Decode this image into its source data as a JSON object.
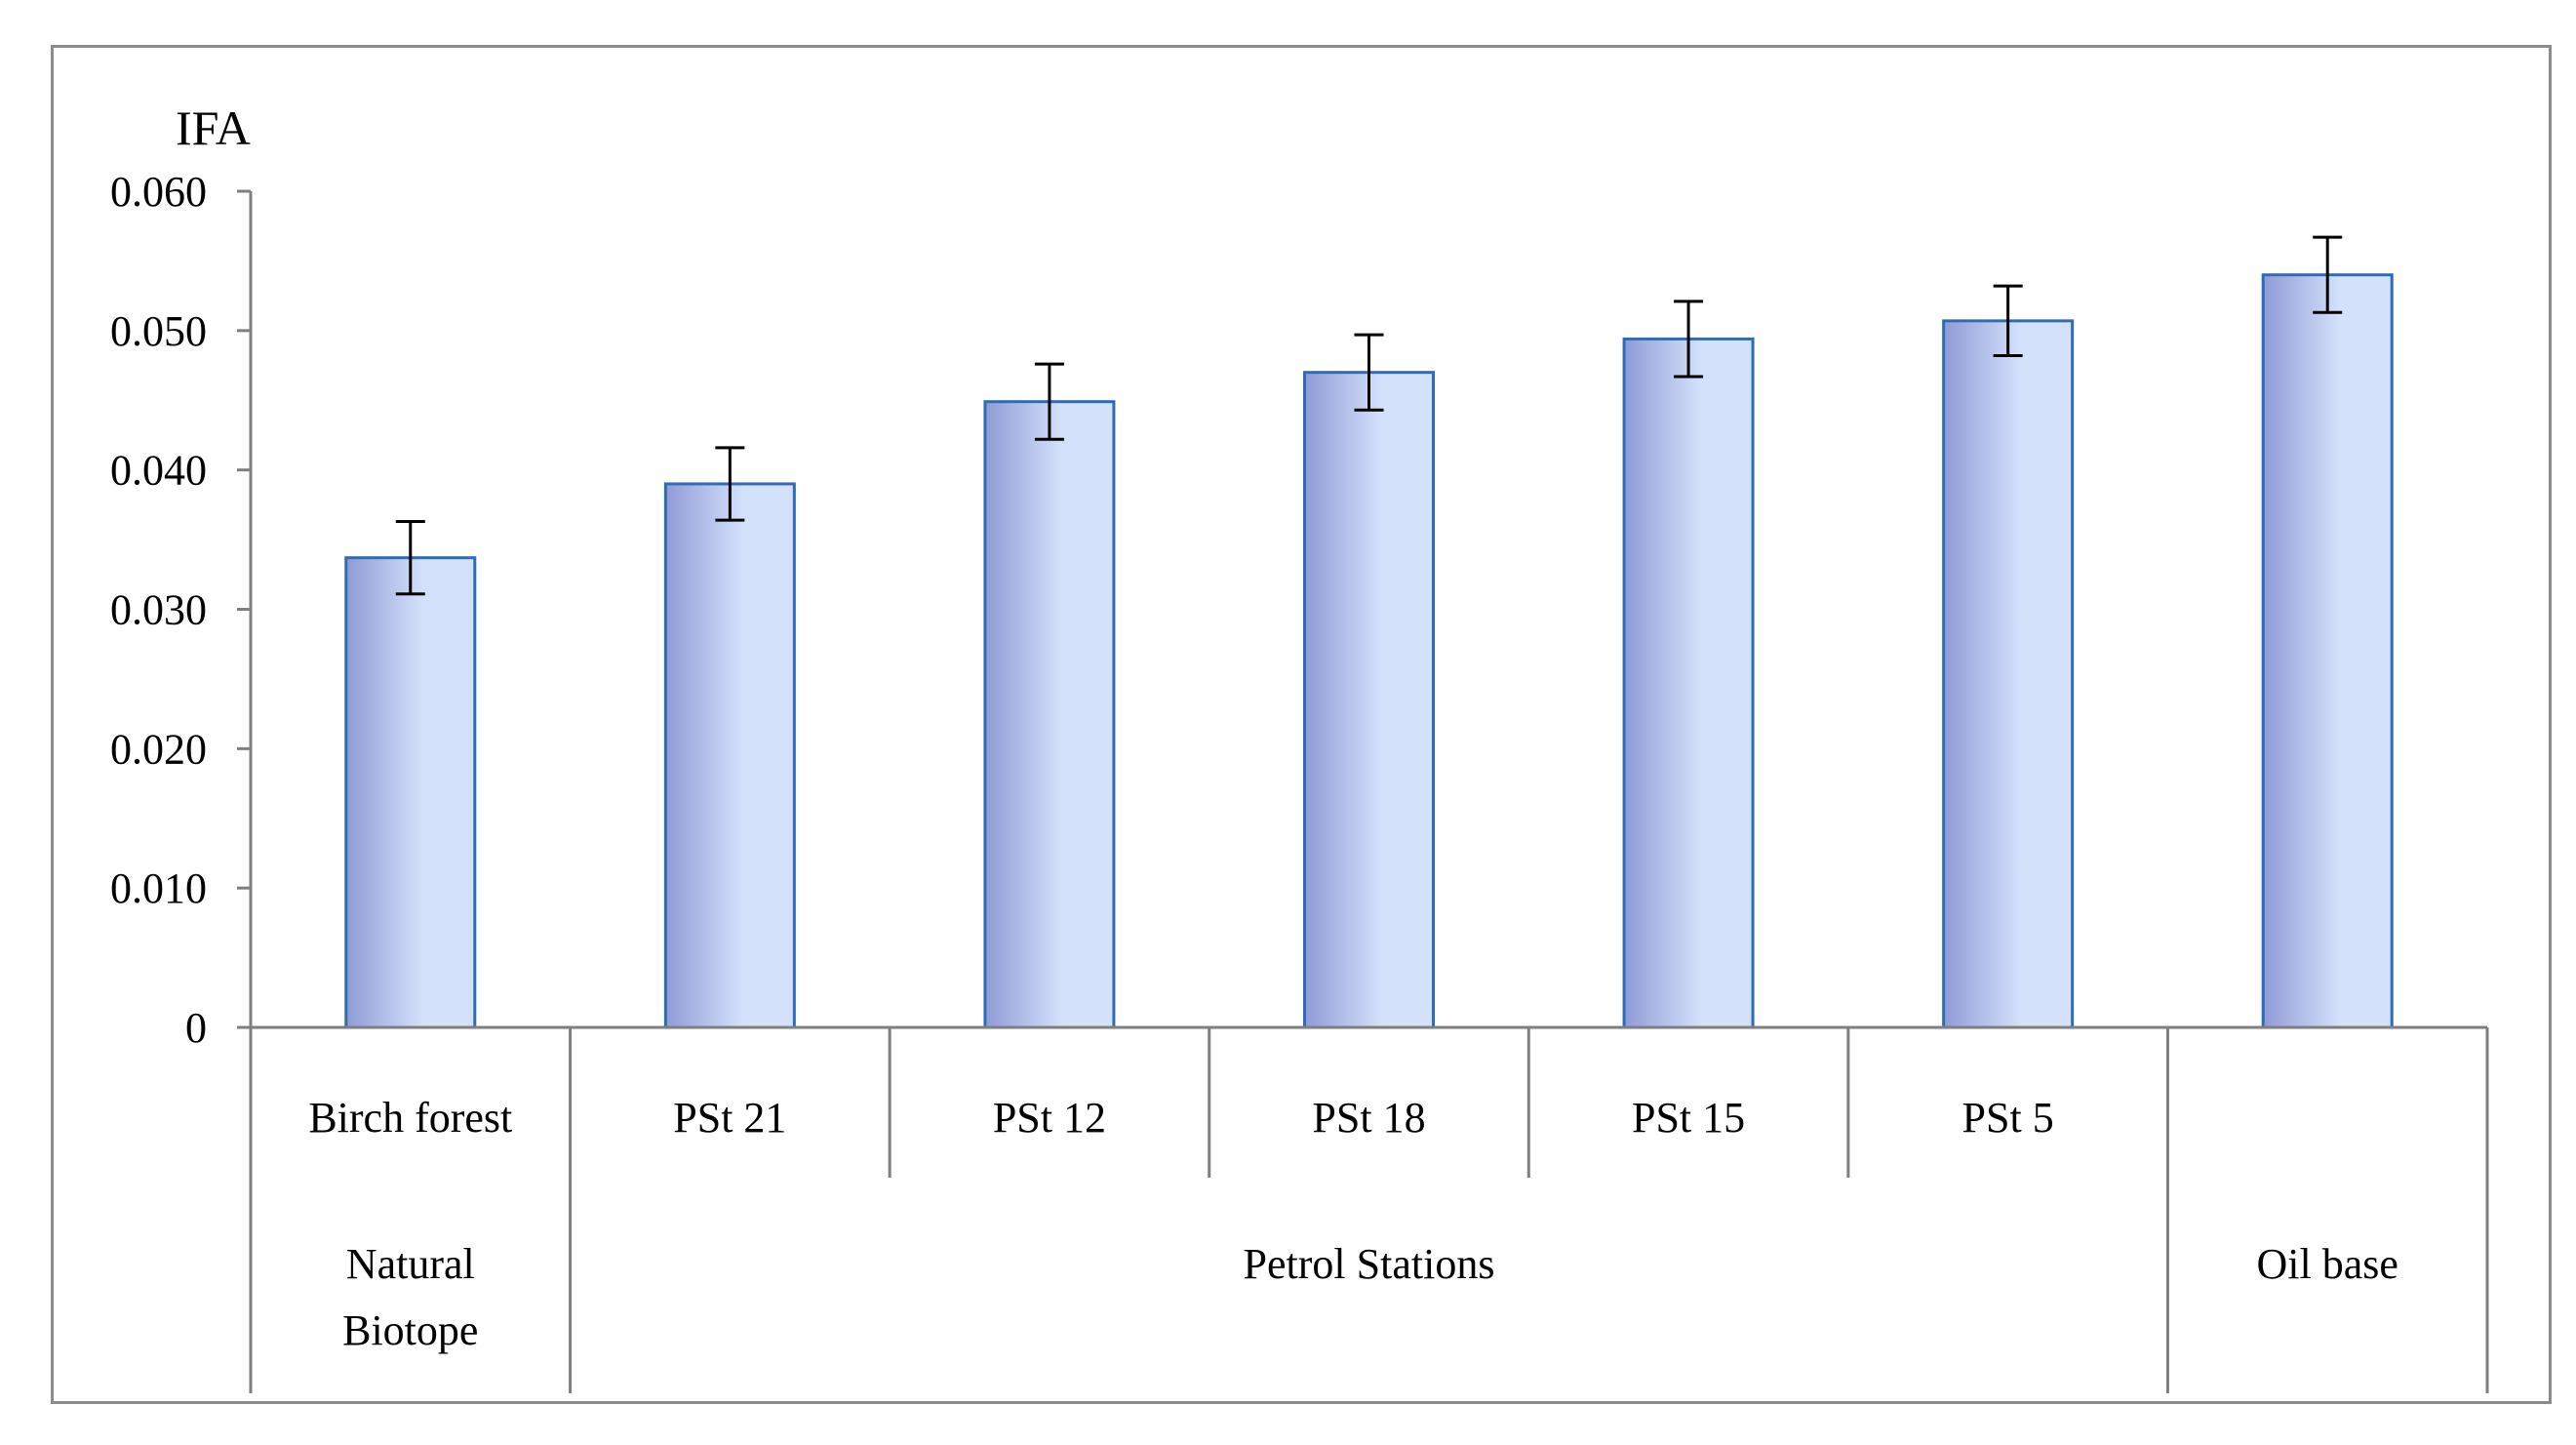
{
  "chart_data": {
    "type": "bar",
    "ylabel": "IFA",
    "ylim": [
      0,
      0.06
    ],
    "yticks": [
      "0",
      "0.010",
      "0.020",
      "0.030",
      "0.040",
      "0.050",
      "0.060"
    ],
    "grid": false,
    "categories": [
      "Birch forest",
      "PSt 21",
      "PSt 12",
      "PSt 18",
      "PSt 15",
      "PSt 5",
      ""
    ],
    "values": [
      0.0337,
      0.039,
      0.0449,
      0.047,
      0.0494,
      0.0507,
      0.054
    ],
    "errors": [
      0.0026,
      0.0026,
      0.0027,
      0.0027,
      0.0027,
      0.0025,
      0.0027
    ],
    "groups": [
      {
        "label_lines": [
          "Natural",
          "Biotope"
        ],
        "span": [
          0,
          0
        ]
      },
      {
        "label_lines": [
          "Petrol Stations"
        ],
        "span": [
          1,
          5
        ]
      },
      {
        "label_lines": [
          "Oil base"
        ],
        "span": [
          6,
          6
        ]
      }
    ],
    "colors": {
      "bar_fill_dark": "#8f9bd6",
      "bar_fill_light": "#d4e1fb",
      "bar_stroke": "#2e6db5"
    }
  }
}
